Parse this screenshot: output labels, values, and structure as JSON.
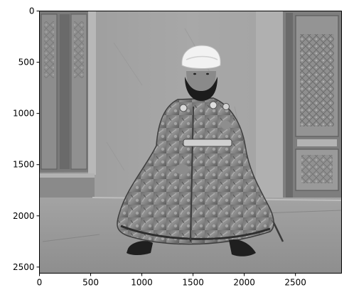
{
  "chart_data": {
    "type": "image",
    "title": "",
    "xlabel": "",
    "ylabel": "",
    "xlim": [
      0,
      2950
    ],
    "ylim": [
      2560,
      0
    ],
    "x_ticks": [
      {
        "value": 0,
        "label": "0"
      },
      {
        "value": 500,
        "label": "500"
      },
      {
        "value": 1000,
        "label": "1000"
      },
      {
        "value": 1500,
        "label": "1500"
      },
      {
        "value": 2000,
        "label": "2000"
      },
      {
        "value": 2500,
        "label": "2500"
      }
    ],
    "y_ticks": [
      {
        "value": 0,
        "label": "0"
      },
      {
        "value": 500,
        "label": "500"
      },
      {
        "value": 1000,
        "label": "1000"
      },
      {
        "value": 1500,
        "label": "1500"
      },
      {
        "value": 2000,
        "label": "2000"
      },
      {
        "value": 2500,
        "label": "2500"
      }
    ],
    "image_subject": "grayscale photograph of a seated bearded man in a white turban and a patterned robe holding a sword, in front of a plastered wall with carved wooden doors",
    "grid": false
  }
}
